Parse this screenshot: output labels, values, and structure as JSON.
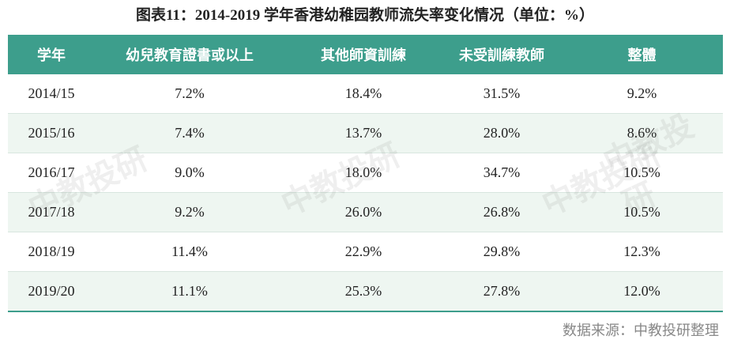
{
  "header": {
    "title": "图表11：2014-2019 学年香港幼稚园教师流失率变化情况（单位：%）"
  },
  "table": {
    "columns": [
      "学年",
      "幼兒教育證書或以上",
      "其他師資訓練",
      "未受訓練教師",
      "整體"
    ],
    "rows": [
      [
        "2014/15",
        "7.2%",
        "18.4%",
        "31.5%",
        "9.2%"
      ],
      [
        "2015/16",
        "7.4%",
        "13.7%",
        "28.0%",
        "8.6%"
      ],
      [
        "2016/17",
        "9.0%",
        "18.0%",
        "34.7%",
        "10.5%"
      ],
      [
        "2017/18",
        "9.2%",
        "26.0%",
        "26.8%",
        "10.5%"
      ],
      [
        "2018/19",
        "11.4%",
        "22.9%",
        "29.8%",
        "12.3%"
      ],
      [
        "2019/20",
        "11.1%",
        "25.3%",
        "27.8%",
        "12.0%"
      ]
    ]
  },
  "watermark": "中教投研",
  "footer": {
    "source": "数据来源：中教投研整理"
  }
}
